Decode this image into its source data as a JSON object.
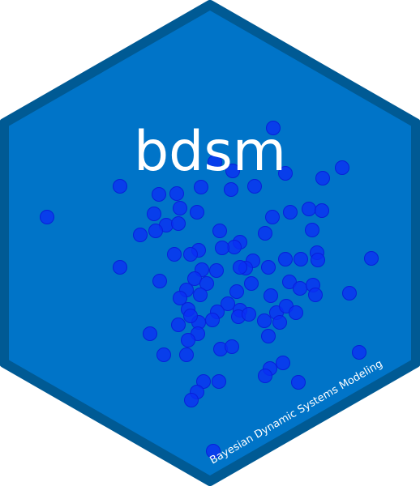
{
  "title": "bdsm",
  "subtitle": "Bayesian Dynamic Systems Modeling",
  "colors": {
    "background": "#ffffff",
    "hex_fill": "#0074c8",
    "hex_border": "#005a94",
    "point_fill": "#0a2ff5",
    "point_stroke": "#0820d8",
    "text": "#ffffff"
  }
}
